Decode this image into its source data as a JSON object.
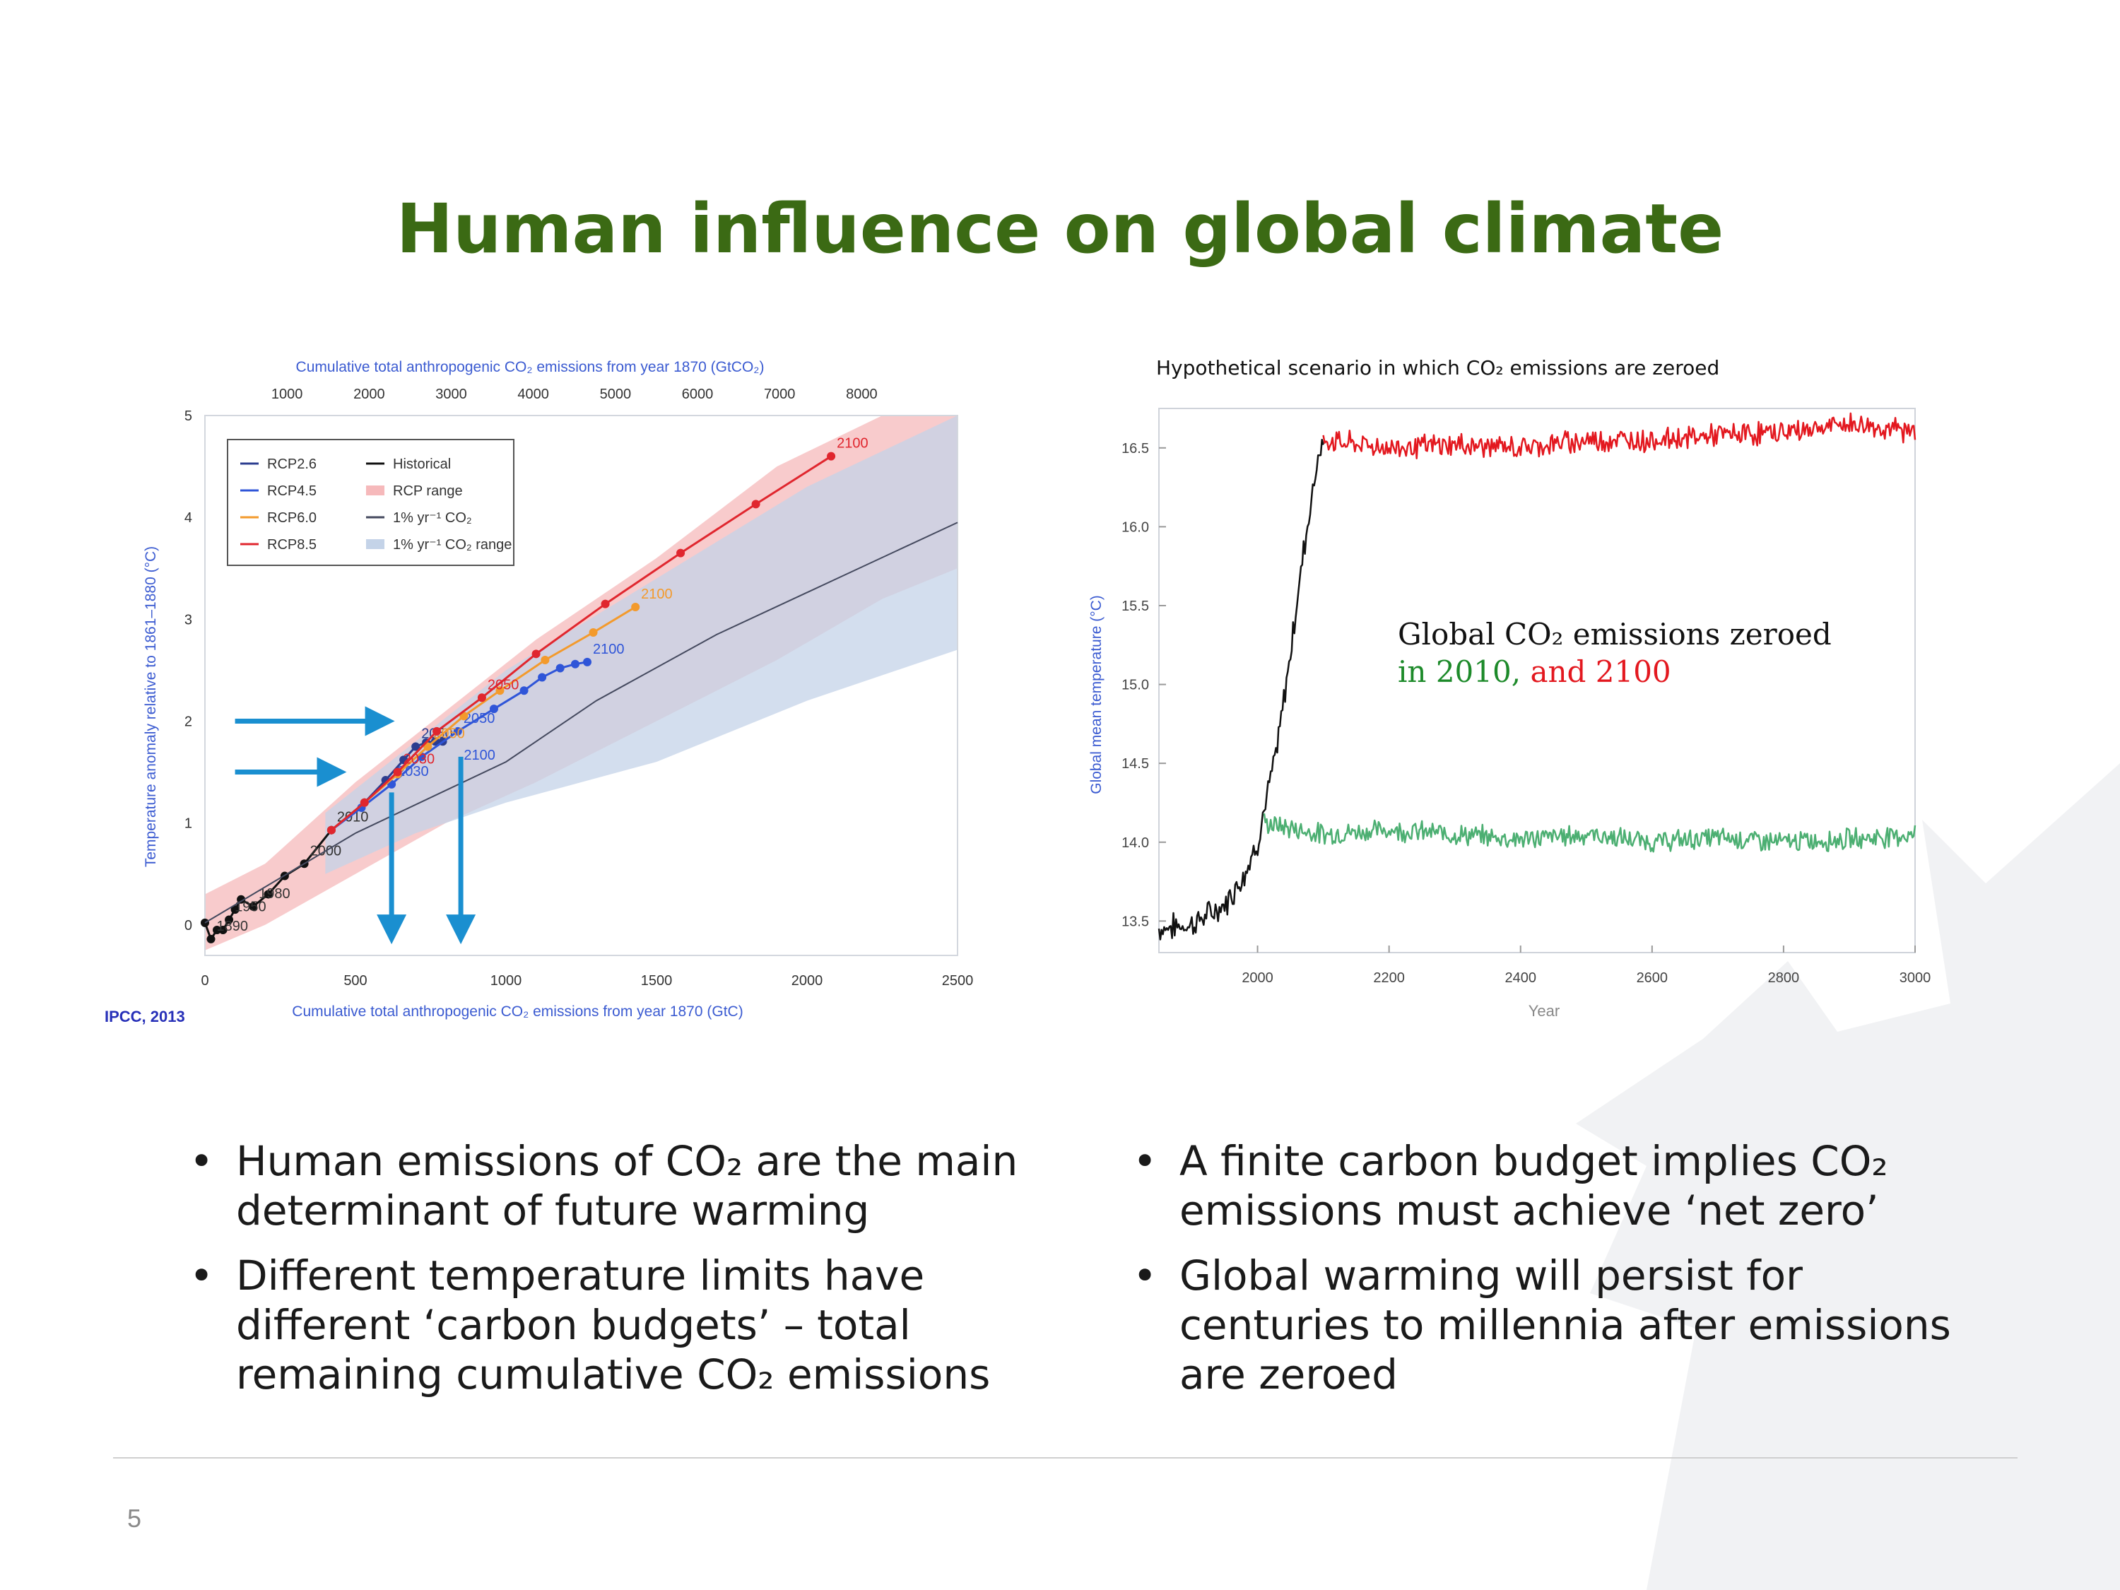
{
  "slide": {
    "title": "Human influence on global climate",
    "page_number": "5",
    "colors": {
      "title": "#3b6a14",
      "text": "#1a1a1a",
      "accent_blue": "#1a8fd0"
    }
  },
  "bullets_left": [
    {
      "text": "Human emissions of CO₂ are the main determinant of future warming"
    },
    {
      "text": "Different temperature limits have different ‘carbon budgets’ – total remaining cumulative CO₂ emissions"
    }
  ],
  "bullets_right": [
    {
      "text": "A finite carbon budget implies CO₂ emissions must achieve ‘net zero’"
    },
    {
      "text": "Global warming will persist for centuries to millennia after emissions are zeroed"
    }
  ],
  "chart_data": [
    {
      "type": "line",
      "source": "IPCC, 2013",
      "top_axis_label": "Cumulative total anthropogenic CO₂ emissions from year 1870 (GtCO₂)",
      "top_ticks": [
        "1000",
        "2000",
        "3000",
        "4000",
        "5000",
        "6000",
        "7000",
        "8000"
      ],
      "xlabel": "Cumulative total anthropogenic CO₂ emissions from year 1870 (GtC)",
      "ylabel": "Temperature anomaly relative to 1861–1880 (°C)",
      "xlim": [
        0,
        2500
      ],
      "ylim": [
        -0.3,
        5
      ],
      "x_ticks": [
        0,
        500,
        1000,
        1500,
        2000,
        2500
      ],
      "y_ticks": [
        0,
        1,
        2,
        3,
        4,
        5
      ],
      "legend_position": "top-left",
      "legend": [
        {
          "label": "RCP2.6",
          "color": "#2c3d8f",
          "kind": "line"
        },
        {
          "label": "RCP4.5",
          "color": "#2f55d8",
          "kind": "line"
        },
        {
          "label": "RCP6.0",
          "color": "#f39a2c",
          "kind": "line"
        },
        {
          "label": "RCP8.5",
          "color": "#e0262e",
          "kind": "line"
        },
        {
          "label": "Historical",
          "color": "#111111",
          "kind": "line"
        },
        {
          "label": "RCP range",
          "color": "#f6b9bb",
          "kind": "patch"
        },
        {
          "label": "1% yr⁻¹ CO₂",
          "color": "#44495e",
          "kind": "line"
        },
        {
          "label": "1% yr⁻¹ CO₂ range",
          "color": "#c4d3e8",
          "kind": "patch"
        }
      ],
      "series": [
        {
          "name": "Historical",
          "color": "#111111",
          "x": [
            0,
            20,
            40,
            60,
            80,
            100,
            120,
            160,
            210,
            265,
            330,
            420
          ],
          "y": [
            0.02,
            -0.14,
            -0.05,
            -0.05,
            0.05,
            0.15,
            0.25,
            0.18,
            0.3,
            0.48,
            0.6,
            0.93
          ],
          "labels": [
            {
              "i": 1,
              "text": "1890"
            },
            {
              "i": 4,
              "text": "1950"
            },
            {
              "i": 7,
              "text": "1980"
            },
            {
              "i": 10,
              "text": "2000"
            },
            {
              "i": 11,
              "text": "2010"
            }
          ]
        },
        {
          "name": "RCP2.6",
          "color": "#2c3d8f",
          "x": [
            420,
            530,
            600,
            660,
            700,
            735,
            765,
            790
          ],
          "y": [
            0.93,
            1.2,
            1.42,
            1.62,
            1.75,
            1.79,
            1.8,
            1.8
          ],
          "labels": [
            {
              "i": 4,
              "text": "2050"
            }
          ]
        },
        {
          "name": "RCP4.5",
          "color": "#2f55d8",
          "x": [
            420,
            520,
            620,
            720,
            840,
            960,
            1060,
            1120,
            1180,
            1230,
            1270
          ],
          "y": [
            0.93,
            1.15,
            1.38,
            1.65,
            1.9,
            2.12,
            2.3,
            2.43,
            2.52,
            2.56,
            2.58
          ],
          "labels": [
            {
              "i": 2,
              "text": "2030"
            },
            {
              "i": 4,
              "text": "2050"
            },
            {
              "i": 10,
              "text": "2100"
            }
          ]
        },
        {
          "name": "RCP6.0",
          "color": "#f39a2c",
          "x": [
            420,
            530,
            640,
            740,
            860,
            980,
            1130,
            1290,
            1430
          ],
          "y": [
            0.93,
            1.2,
            1.48,
            1.75,
            2.05,
            2.3,
            2.6,
            2.87,
            3.12
          ],
          "labels": [
            {
              "i": 3,
              "text": "2050"
            },
            {
              "i": 8,
              "text": "2100"
            }
          ]
        },
        {
          "name": "RCP8.5",
          "color": "#e0262e",
          "x": [
            420,
            530,
            640,
            770,
            920,
            1100,
            1330,
            1580,
            1830,
            2080
          ],
          "y": [
            0.93,
            1.2,
            1.5,
            1.9,
            2.23,
            2.66,
            3.15,
            3.65,
            4.13,
            4.6
          ],
          "labels": [
            {
              "i": 2,
              "text": "2030"
            },
            {
              "i": 4,
              "text": "2050"
            },
            {
              "i": 9,
              "text": "2100"
            }
          ]
        },
        {
          "name": "1% yr⁻¹ CO₂",
          "color": "#44495e",
          "x": [
            0,
            500,
            1000,
            1300,
            1700,
            2100,
            2500
          ],
          "y": [
            0.02,
            0.9,
            1.6,
            2.2,
            2.85,
            3.4,
            3.95
          ],
          "labels": []
        }
      ],
      "extra_labels": [
        {
          "text": "2100",
          "x": 860,
          "y": 1.62
        }
      ],
      "bands": [
        {
          "name": "RCP range",
          "color": "#f6b9bb",
          "x": [
            0,
            200,
            500,
            800,
            1100,
            1500,
            1900,
            2250,
            2500
          ],
          "lo": [
            -0.25,
            0.0,
            0.5,
            1.0,
            1.4,
            2.0,
            2.6,
            3.2,
            3.5
          ],
          "hi": [
            0.3,
            0.6,
            1.4,
            2.1,
            2.8,
            3.6,
            4.5,
            5.0,
            5.0
          ]
        },
        {
          "name": "1% yr⁻¹ CO₂ range",
          "color": "#c4d3e8",
          "x": [
            400,
            700,
            1000,
            1500,
            2000,
            2500
          ],
          "lo": [
            0.5,
            0.9,
            1.2,
            1.6,
            2.2,
            2.7
          ],
          "hi": [
            1.1,
            1.8,
            2.5,
            3.4,
            4.3,
            5.0
          ]
        }
      ],
      "annotations": [
        {
          "kind": "arrow-right",
          "color": "#1a8fd0",
          "y": 2.0,
          "x_from": 100,
          "x_to": 600
        },
        {
          "kind": "arrow-right",
          "color": "#1a8fd0",
          "y": 1.5,
          "x_from": 100,
          "x_to": 440
        },
        {
          "kind": "arrow-down",
          "color": "#1a8fd0",
          "x": 620,
          "y_from": 1.3,
          "y_to": -0.1
        },
        {
          "kind": "arrow-down",
          "color": "#1a8fd0",
          "x": 850,
          "y_from": 1.65,
          "y_to": -0.1
        }
      ]
    },
    {
      "type": "line",
      "title": "Hypothetical scenario in which CO₂ emissions are zeroed",
      "xlabel": "Year",
      "ylabel": "Global mean temperature (°C)",
      "xlim": [
        1850,
        3000
      ],
      "ylim": [
        13.3,
        16.75
      ],
      "x_ticks": [
        2000,
        2200,
        2400,
        2600,
        2800,
        3000
      ],
      "y_ticks": [
        13.5,
        14.0,
        14.5,
        15.0,
        15.5,
        16.0,
        16.5
      ],
      "annotation": {
        "line1": "Global CO₂ emissions zeroed",
        "part_green": "in 2010",
        "sep": ",",
        "part_red": "and 2100"
      },
      "series": [
        {
          "name": "Historical",
          "color": "#111111",
          "x": [
            1850,
            1900,
            1950,
            1980,
            2000,
            2010,
            2030,
            2050,
            2070,
            2090,
            2100
          ],
          "y": [
            13.45,
            13.48,
            13.6,
            13.8,
            14.0,
            14.2,
            14.6,
            15.2,
            15.85,
            16.4,
            16.55
          ]
        },
        {
          "name": "Zeroed in 2010",
          "color": "#4caf72",
          "x": [
            2010,
            2100,
            2200,
            2300,
            2400,
            2500,
            2600,
            2700,
            2800,
            2900,
            3000
          ],
          "y": [
            14.12,
            14.05,
            14.08,
            14.05,
            14.02,
            14.05,
            14.0,
            14.03,
            14.0,
            14.02,
            14.05
          ]
        },
        {
          "name": "Zeroed in 2100",
          "color": "#e3181f",
          "x": [
            2100,
            2200,
            2300,
            2400,
            2500,
            2600,
            2700,
            2800,
            2900,
            3000
          ],
          "y": [
            16.55,
            16.5,
            16.52,
            16.5,
            16.55,
            16.55,
            16.58,
            16.6,
            16.65,
            16.6
          ]
        }
      ]
    }
  ]
}
